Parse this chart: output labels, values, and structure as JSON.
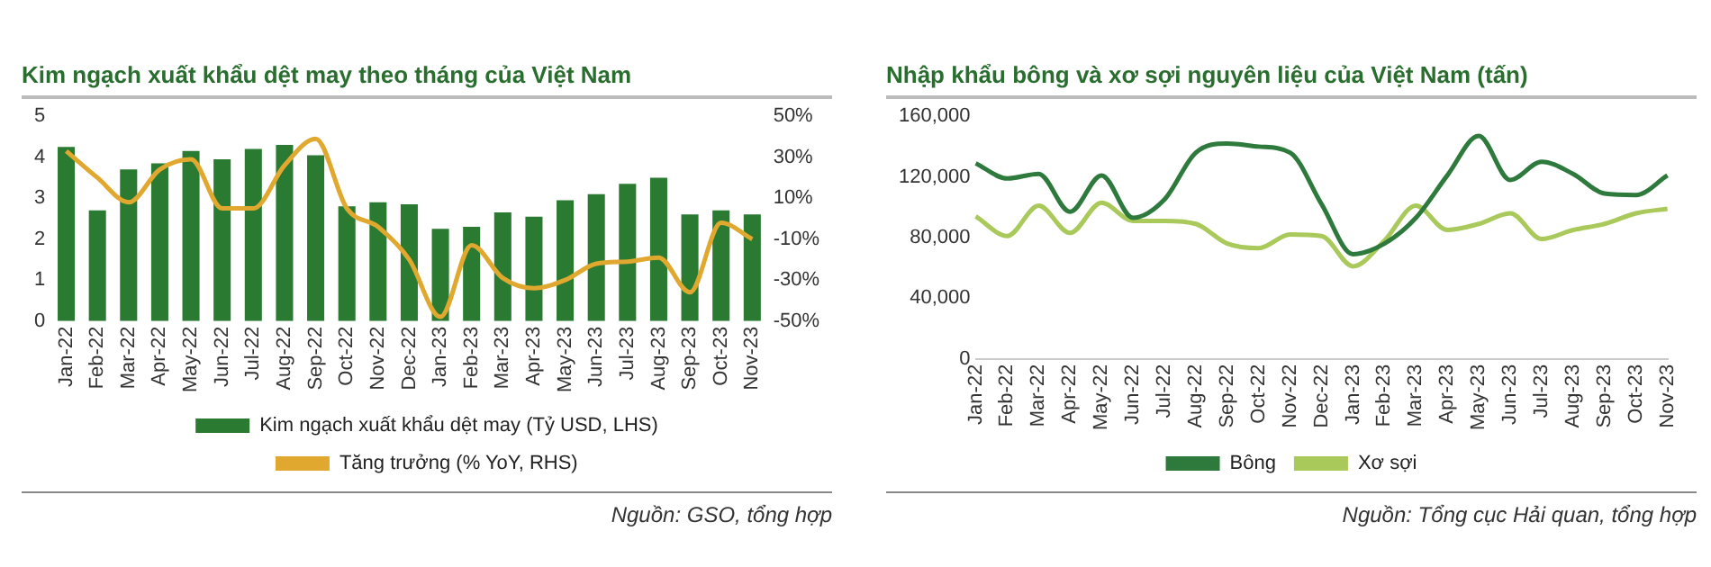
{
  "chart_data": [
    {
      "type": "bar",
      "title": "Kim ngạch xuất khẩu dệt may theo tháng của Việt Nam",
      "categories": [
        "Jan-22",
        "Feb-22",
        "Mar-22",
        "Apr-22",
        "May-22",
        "Jun-22",
        "Jul-22",
        "Aug-22",
        "Sep-22",
        "Oct-22",
        "Nov-22",
        "Dec-22",
        "Jan-23",
        "Feb-23",
        "Mar-23",
        "Apr-23",
        "May-23",
        "Jun-23",
        "Jul-23",
        "Aug-23",
        "Sep-23",
        "Oct-23",
        "Nov-23"
      ],
      "series": [
        {
          "name": "Kim ngạch xuất khẩu dệt may (Tỷ USD, LHS)",
          "color": "#2a7a32",
          "values": [
            4.25,
            2.7,
            3.7,
            3.85,
            4.15,
            3.95,
            4.2,
            4.3,
            4.05,
            2.8,
            2.9,
            2.85,
            2.25,
            2.3,
            2.65,
            2.55,
            2.95,
            3.1,
            3.35,
            3.5,
            2.6,
            2.7,
            2.6
          ]
        },
        {
          "name": "Tăng trưởng (% YoY, RHS)",
          "type": "line",
          "axis": "y2",
          "color": "#e0a82e",
          "values": [
            33,
            20,
            8,
            24,
            29,
            5,
            5,
            26,
            39,
            5,
            -4,
            -20,
            -48,
            -13,
            -29,
            -34,
            -30,
            -22,
            -21,
            -19,
            -36,
            -2,
            -10
          ]
        }
      ],
      "ylim": [
        0,
        5
      ],
      "yticks": [
        0,
        1,
        2,
        3,
        4,
        5
      ],
      "y2lim": [
        -50,
        50
      ],
      "y2ticks": [
        {
          "value": -50,
          "label": "-50%"
        },
        {
          "value": -30,
          "label": "-30%"
        },
        {
          "value": -10,
          "label": "-10%"
        },
        {
          "value": 10,
          "label": "10%"
        },
        {
          "value": 30,
          "label": "30%"
        },
        {
          "value": 50,
          "label": "50%"
        }
      ],
      "legend": "bottom",
      "annotations": [
        "Nguồn: GSO, tổng hợp"
      ]
    },
    {
      "type": "line",
      "title": "Nhập khẩu bông và xơ sợi nguyên liệu của Việt Nam (tấn)",
      "categories": [
        "Jan-22",
        "Feb-22",
        "Mar-22",
        "Apr-22",
        "May-22",
        "Jun-22",
        "Jul-22",
        "Aug-22",
        "Sep-22",
        "Oct-22",
        "Nov-22",
        "Dec-22",
        "Jan-23",
        "Feb-23",
        "Mar-23",
        "Apr-23",
        "May-23",
        "Jun-23",
        "Jul-23",
        "Aug-23",
        "Sep-23",
        "Oct-23",
        "Nov-23"
      ],
      "series": [
        {
          "name": "Bông",
          "color": "#2e7a3c",
          "values": [
            129000,
            119000,
            122000,
            97000,
            121000,
            93000,
            105000,
            136000,
            142000,
            140000,
            136000,
            102000,
            69000,
            76000,
            93000,
            121000,
            147000,
            118000,
            130000,
            122000,
            109000,
            108000,
            121000
          ]
        },
        {
          "name": "Xơ sợi",
          "color": "#a9c95a",
          "values": [
            94000,
            81000,
            101000,
            83000,
            103000,
            91000,
            91000,
            89000,
            76000,
            73000,
            82000,
            81000,
            61000,
            78000,
            101000,
            85000,
            89000,
            96000,
            79000,
            85000,
            89000,
            96000,
            99000
          ]
        }
      ],
      "ylim": [
        0,
        160000
      ],
      "yticks": [
        0,
        {
          "value": 40000,
          "label": "40,000"
        },
        {
          "value": 80000,
          "label": "80,000"
        },
        {
          "value": 120000,
          "label": "120,000"
        },
        {
          "value": 160000,
          "label": "160,000"
        }
      ],
      "legend": "bottom",
      "annotations": [
        "Nguồn: Tổng cục Hải quan, tổng hợp"
      ]
    }
  ]
}
